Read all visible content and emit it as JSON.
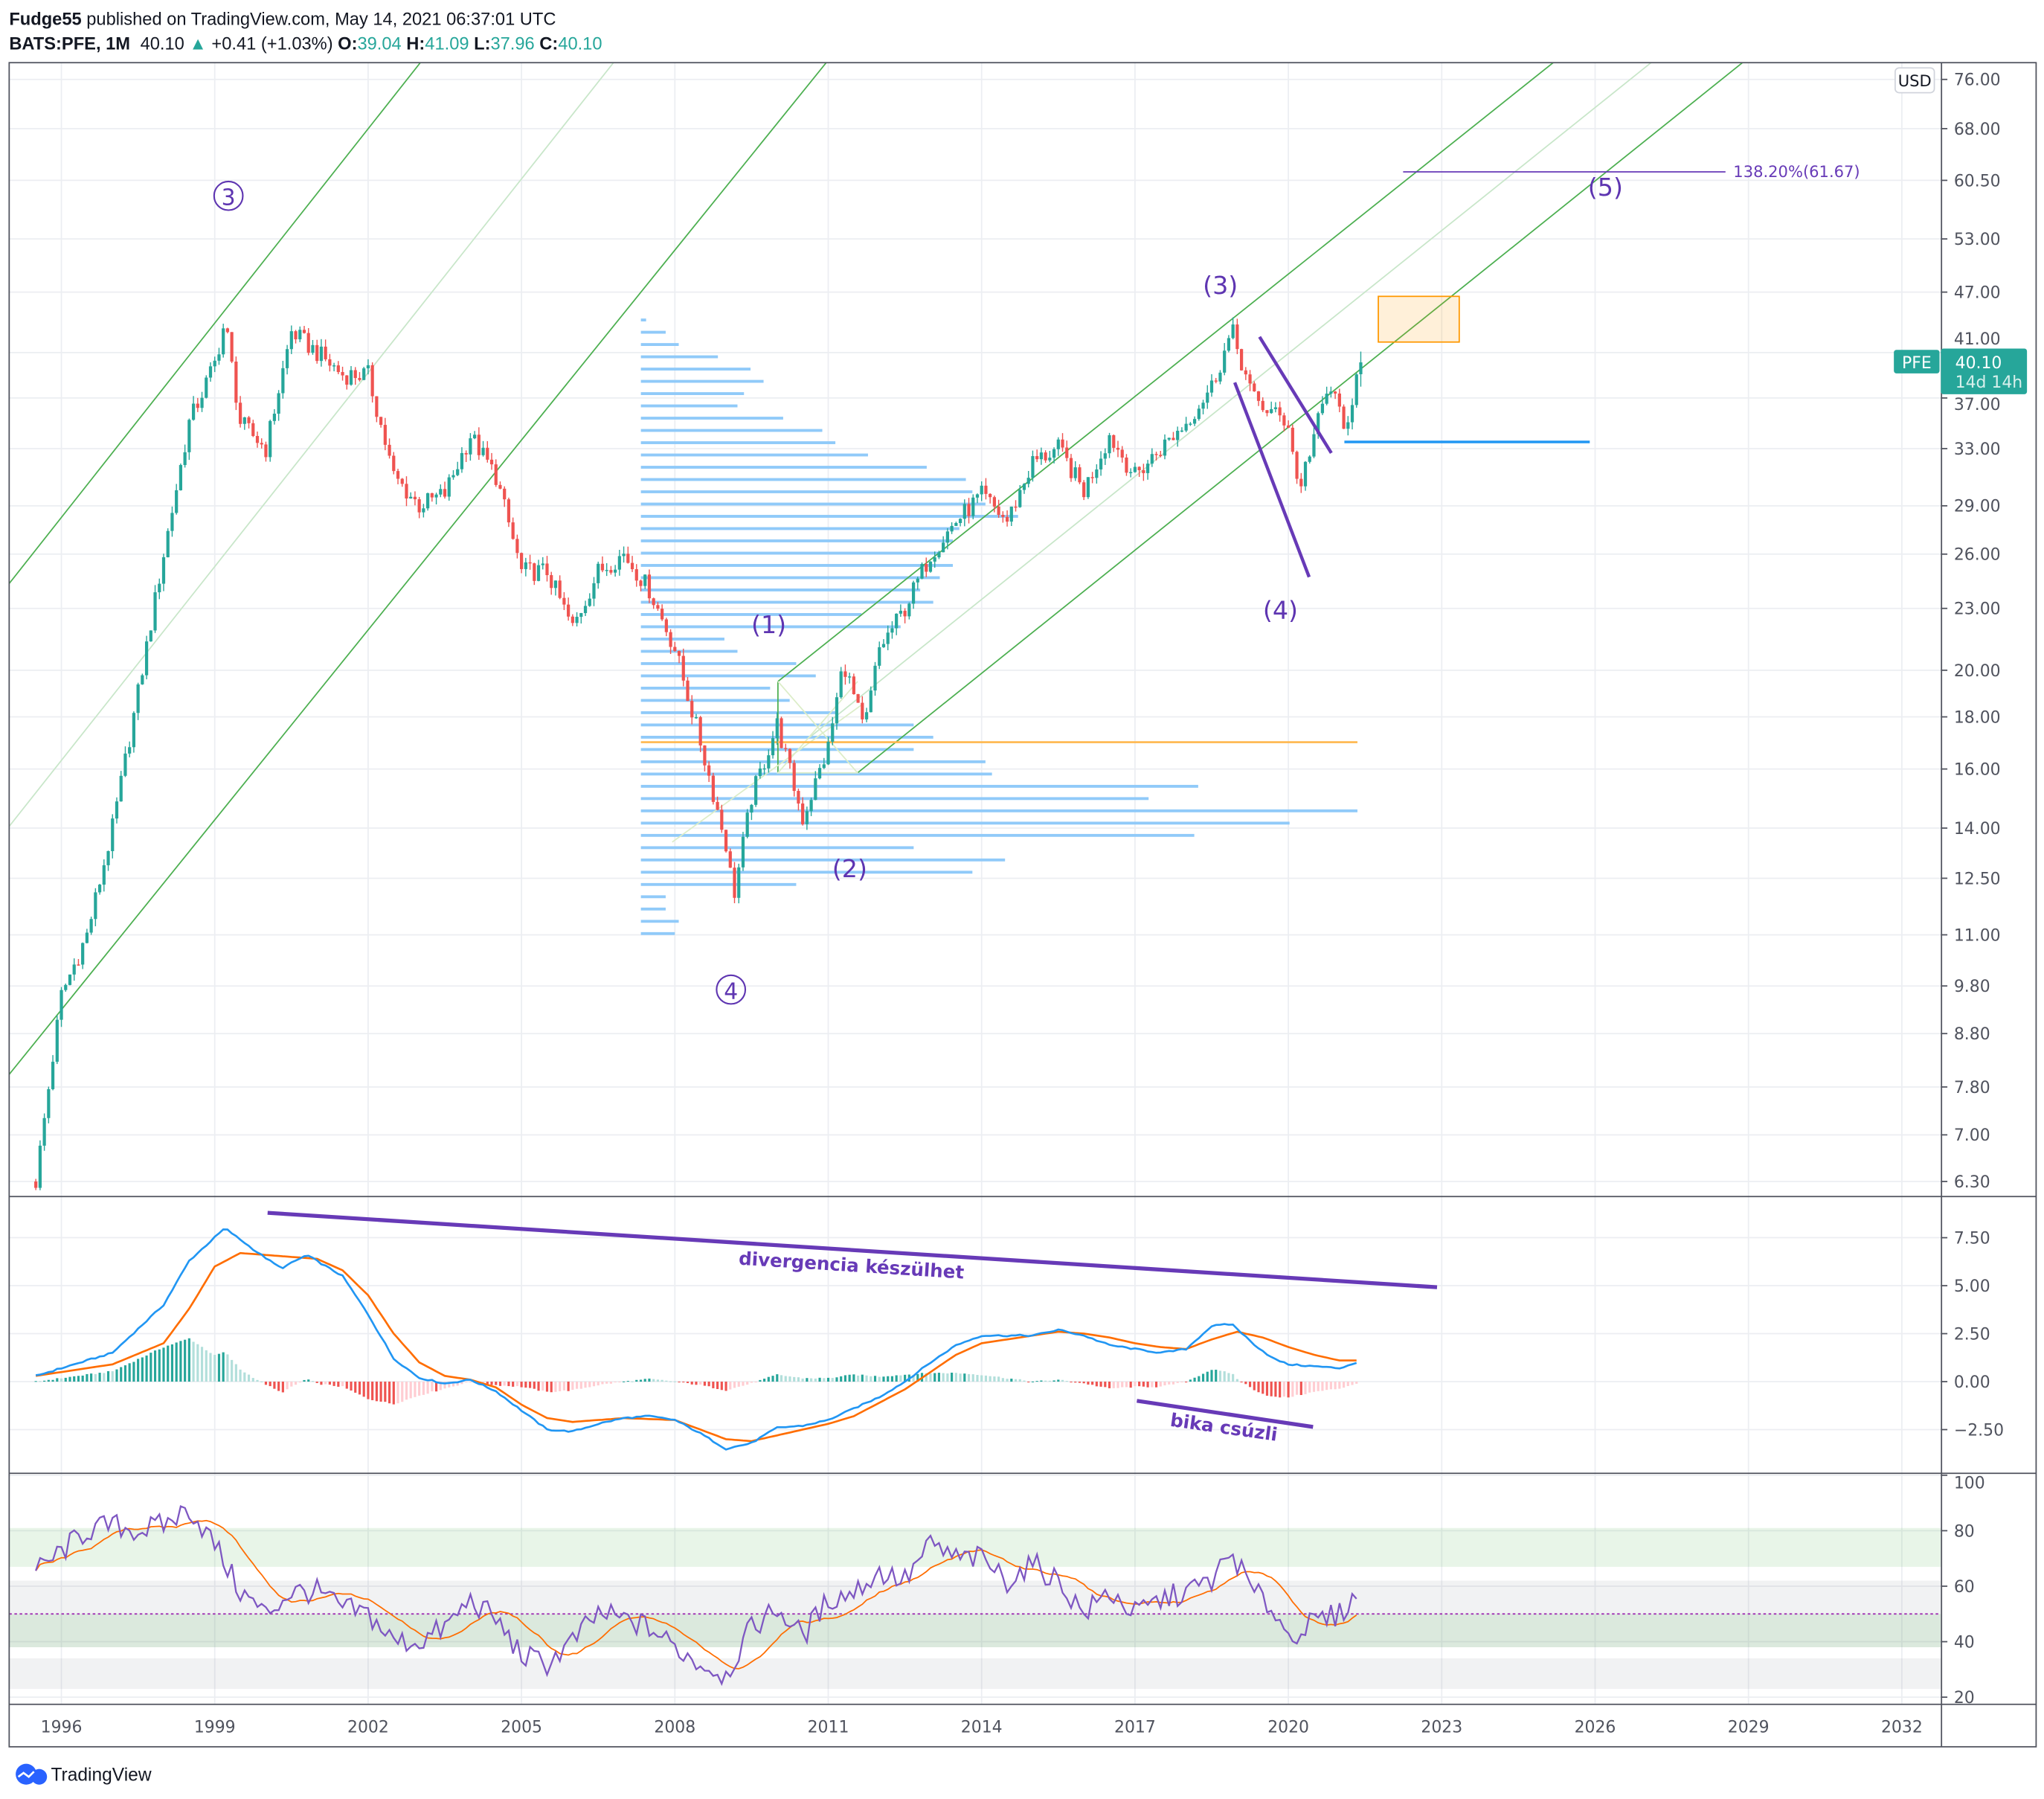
{
  "header": {
    "publisher": "Fudge55",
    "published_text": "published on TradingView.com, May 14, 2021 06:37:01 UTC",
    "symbol": "BATS:PFE, 1M",
    "last": "40.10",
    "change_icon": "triangle-up-icon",
    "change": "+0.41 (+1.03%)",
    "o_label": "O:",
    "o": "39.04",
    "h_label": "H:",
    "h": "41.09",
    "l_label": "L:",
    "l": "37.96",
    "c_label": "C:",
    "c": "40.10"
  },
  "price_axis": {
    "currency": "USD",
    "ticks": [
      "76.00",
      "68.00",
      "60.50",
      "53.00",
      "47.00",
      "41.00",
      "37.00",
      "33.00",
      "29.00",
      "26.00",
      "23.00",
      "20.00",
      "18.00",
      "16.00",
      "14.00",
      "12.50",
      "11.00",
      "9.80",
      "8.80",
      "7.80",
      "7.00",
      "6.30"
    ],
    "badge": {
      "symbol": "PFE",
      "price": "40.10",
      "countdown": "14d 14h"
    }
  },
  "time_axis": {
    "ticks": [
      "1996",
      "1999",
      "2002",
      "2005",
      "2008",
      "2011",
      "2014",
      "2017",
      "2020",
      "2023",
      "2026",
      "2029",
      "2032"
    ]
  },
  "annotations": {
    "wave_3_major": "3",
    "wave_4_major": "4",
    "wave_1": "(1)",
    "wave_2": "(2)",
    "wave_3": "(3)",
    "wave_4": "(4)",
    "wave_5": "(5)",
    "fib_label": "138.20%(61.67)",
    "macd_note": "divergencia készülhet",
    "macd_note2": "bika csúzli"
  },
  "macd_axis": {
    "ticks": [
      "7.50",
      "5.00",
      "2.50",
      "0.00",
      "−2.50"
    ]
  },
  "rsi_axis": {
    "ticks": [
      "100",
      "80",
      "60",
      "40",
      "20"
    ]
  },
  "footer": {
    "brand": "TradingView"
  },
  "colors": {
    "up": "#26a69a",
    "down": "#ef5350",
    "up_light": "#b2dfdb",
    "down_light": "#ffcdd2",
    "macd": "#2196f3",
    "signal": "#ff6d00",
    "rsi": "#7e57c2",
    "drawing": "#673ab7",
    "channel": "#4caf50"
  },
  "chart_data": [
    {
      "type": "candlestick",
      "title": "BATS:PFE, 1M",
      "scale": "log",
      "ylim": [
        6.3,
        76
      ],
      "xlim": [
        1995.5,
        2033
      ],
      "close_anchors": [
        [
          1995.5,
          6.3
        ],
        [
          1996,
          9.6
        ],
        [
          1996.5,
          11
        ],
        [
          1997,
          14
        ],
        [
          1997.5,
          19
        ],
        [
          1998,
          26
        ],
        [
          1998.5,
          35
        ],
        [
          1999,
          40
        ],
        [
          1999.2,
          44
        ],
        [
          1999.5,
          35
        ],
        [
          2000,
          33
        ],
        [
          2000.5,
          43
        ],
        [
          2001,
          41
        ],
        [
          2001.5,
          39
        ],
        [
          2002,
          39
        ],
        [
          2002.5,
          31
        ],
        [
          2003,
          29
        ],
        [
          2003.5,
          29.8
        ],
        [
          2004,
          34
        ],
        [
          2004.5,
          31
        ],
        [
          2005,
          25
        ],
        [
          2005.5,
          25
        ],
        [
          2006,
          22
        ],
        [
          2006.5,
          25
        ],
        [
          2007,
          26
        ],
        [
          2007.5,
          24
        ],
        [
          2008,
          21
        ],
        [
          2008.5,
          17
        ],
        [
          2009,
          13.5
        ],
        [
          2009.15,
          12
        ],
        [
          2009.5,
          15
        ],
        [
          2010,
          17.7
        ],
        [
          2010.5,
          14.3
        ],
        [
          2011,
          16.8
        ],
        [
          2011.3,
          20.4
        ],
        [
          2011.7,
          17.4
        ],
        [
          2012,
          21
        ],
        [
          2012.5,
          23
        ],
        [
          2013,
          26
        ],
        [
          2013.5,
          28
        ],
        [
          2014,
          29.7
        ],
        [
          2014.5,
          28
        ],
        [
          2015,
          32
        ],
        [
          2015.5,
          33
        ],
        [
          2016,
          30
        ],
        [
          2016.5,
          34
        ],
        [
          2017,
          31
        ],
        [
          2017.5,
          33
        ],
        [
          2018,
          35
        ],
        [
          2018.5,
          38
        ],
        [
          2018.9,
          43
        ],
        [
          2019.3,
          37
        ],
        [
          2019.6,
          36
        ],
        [
          2020,
          35
        ],
        [
          2020.2,
          30
        ],
        [
          2020.5,
          34
        ],
        [
          2020.8,
          38
        ],
        [
          2021,
          36
        ],
        [
          2021.2,
          34
        ],
        [
          2021.34,
          39.04
        ]
      ],
      "last_candle": {
        "open": 39.04,
        "high": 41.09,
        "low": 37.96,
        "close": 40.1
      },
      "volume_profile": [
        4,
        19,
        29,
        59,
        84,
        94,
        79,
        74,
        109,
        139,
        149,
        174,
        219,
        249,
        254,
        264,
        289,
        244,
        239,
        229,
        239,
        229,
        214,
        224,
        169,
        199,
        64,
        74,
        119,
        134,
        99,
        114,
        149,
        209,
        224,
        209,
        264,
        269,
        427,
        389,
        549,
        497,
        424,
        209,
        279,
        254,
        119,
        19,
        19,
        29,
        26
      ],
      "poc_price": 17.0,
      "horizontal_level": 33.5,
      "fib_level": 61.67
    },
    {
      "type": "line",
      "title": "MACD",
      "ylim": [
        -3.8,
        8.8
      ],
      "series": [
        {
          "name": "MACD",
          "anchors": [
            [
              1995.5,
              0.3
            ],
            [
              1997,
              1.5
            ],
            [
              1998,
              4
            ],
            [
              1998.5,
              6.3
            ],
            [
              1999.2,
              8.0
            ],
            [
              1999.8,
              6.8
            ],
            [
              2000.3,
              5.9
            ],
            [
              2000.8,
              6.6
            ],
            [
              2001.5,
              5.5
            ],
            [
              2002,
              3.5
            ],
            [
              2002.5,
              1.2
            ],
            [
              2003,
              0.2
            ],
            [
              2003.5,
              -0.1
            ],
            [
              2004,
              0.1
            ],
            [
              2004.5,
              -0.5
            ],
            [
              2005,
              -1.5
            ],
            [
              2005.5,
              -2.5
            ],
            [
              2006,
              -2.6
            ],
            [
              2006.5,
              -2.2
            ],
            [
              2007,
              -1.9
            ],
            [
              2007.5,
              -1.8
            ],
            [
              2008,
              -2.0
            ],
            [
              2008.5,
              -2.7
            ],
            [
              2009,
              -3.5
            ],
            [
              2009.5,
              -3.2
            ],
            [
              2010,
              -2.4
            ],
            [
              2010.5,
              -2.3
            ],
            [
              2011,
              -2.0
            ],
            [
              2011.5,
              -1.4
            ],
            [
              2012,
              -0.8
            ],
            [
              2012.5,
              0.0
            ],
            [
              2013,
              1.0
            ],
            [
              2013.5,
              1.9
            ],
            [
              2014,
              2.4
            ],
            [
              2014.5,
              2.4
            ],
            [
              2015,
              2.4
            ],
            [
              2015.5,
              2.7
            ],
            [
              2016,
              2.4
            ],
            [
              2016.5,
              1.9
            ],
            [
              2017,
              1.7
            ],
            [
              2017.5,
              1.5
            ],
            [
              2018,
              1.7
            ],
            [
              2018.5,
              2.9
            ],
            [
              2018.9,
              3.0
            ],
            [
              2019.3,
              2.0
            ],
            [
              2019.7,
              1.2
            ],
            [
              2020,
              0.9
            ],
            [
              2020.5,
              0.8
            ],
            [
              2021,
              0.7
            ],
            [
              2021.34,
              1.0
            ]
          ]
        },
        {
          "name": "Signal",
          "anchors": [
            [
              1995.5,
              0.3
            ],
            [
              1997,
              0.9
            ],
            [
              1998,
              2.0
            ],
            [
              1998.5,
              3.8
            ],
            [
              1999,
              6.0
            ],
            [
              1999.5,
              6.7
            ],
            [
              2000.5,
              6.5
            ],
            [
              2001,
              6.4
            ],
            [
              2001.5,
              5.8
            ],
            [
              2002,
              4.5
            ],
            [
              2002.5,
              2.5
            ],
            [
              2003,
              1.0
            ],
            [
              2003.5,
              0.3
            ],
            [
              2004,
              0.1
            ],
            [
              2004.5,
              -0.3
            ],
            [
              2005,
              -1.2
            ],
            [
              2005.5,
              -1.9
            ],
            [
              2006,
              -2.1
            ],
            [
              2007,
              -1.9
            ],
            [
              2008,
              -2.0
            ],
            [
              2008.5,
              -2.5
            ],
            [
              2009,
              -3.0
            ],
            [
              2009.5,
              -3.1
            ],
            [
              2010,
              -2.8
            ],
            [
              2010.5,
              -2.5
            ],
            [
              2011,
              -2.2
            ],
            [
              2011.5,
              -1.8
            ],
            [
              2012,
              -1.1
            ],
            [
              2012.5,
              -0.4
            ],
            [
              2013,
              0.5
            ],
            [
              2013.5,
              1.4
            ],
            [
              2014,
              2.0
            ],
            [
              2014.5,
              2.2
            ],
            [
              2015,
              2.4
            ],
            [
              2015.5,
              2.6
            ],
            [
              2016,
              2.5
            ],
            [
              2016.5,
              2.3
            ],
            [
              2017,
              2.0
            ],
            [
              2017.5,
              1.8
            ],
            [
              2018,
              1.7
            ],
            [
              2018.5,
              2.2
            ],
            [
              2019,
              2.6
            ],
            [
              2019.5,
              2.3
            ],
            [
              2020,
              1.8
            ],
            [
              2020.5,
              1.4
            ],
            [
              2021,
              1.1
            ],
            [
              2021.34,
              1.1
            ]
          ]
        }
      ]
    },
    {
      "type": "line",
      "title": "RSI",
      "ylim": [
        20,
        100
      ],
      "bands": [
        [
          67,
          81
        ],
        [
          38,
          62
        ],
        [
          38,
          50
        ],
        [
          23,
          34
        ]
      ],
      "midline": 50,
      "series": [
        {
          "name": "RSI",
          "anchors": [
            [
              1995.5,
              65
            ],
            [
              1996.5,
              80
            ],
            [
              1997,
              82
            ],
            [
              1997.5,
              80
            ],
            [
              1998,
              82
            ],
            [
              1998.5,
              88
            ],
            [
              1999,
              75
            ],
            [
              1999.5,
              58
            ],
            [
              2000,
              50
            ],
            [
              2000.5,
              58
            ],
            [
              2001,
              58
            ],
            [
              2001.5,
              52
            ],
            [
              2002,
              50
            ],
            [
              2002.5,
              40
            ],
            [
              2003,
              40
            ],
            [
              2003.5,
              45
            ],
            [
              2004,
              55
            ],
            [
              2004.5,
              48
            ],
            [
              2005,
              35
            ],
            [
              2005.5,
              32
            ],
            [
              2006,
              40
            ],
            [
              2006.5,
              50
            ],
            [
              2007,
              48
            ],
            [
              2007.5,
              45
            ],
            [
              2008,
              38
            ],
            [
              2008.5,
              32
            ],
            [
              2009,
              28
            ],
            [
              2009.5,
              45
            ],
            [
              2010,
              52
            ],
            [
              2010.5,
              42
            ],
            [
              2011,
              55
            ],
            [
              2011.5,
              58
            ],
            [
              2012,
              65
            ],
            [
              2012.5,
              62
            ],
            [
              2013,
              75
            ],
            [
              2013.5,
              70
            ],
            [
              2014,
              70
            ],
            [
              2014.5,
              62
            ],
            [
              2015,
              68
            ],
            [
              2015.5,
              62
            ],
            [
              2016,
              50
            ],
            [
              2016.5,
              58
            ],
            [
              2017,
              50
            ],
            [
              2017.5,
              55
            ],
            [
              2018,
              58
            ],
            [
              2018.5,
              62
            ],
            [
              2018.9,
              72
            ],
            [
              2019.3,
              58
            ],
            [
              2019.7,
              52
            ],
            [
              2020,
              42
            ],
            [
              2020.3,
              45
            ],
            [
              2020.7,
              48
            ],
            [
              2021,
              50
            ],
            [
              2021.34,
              57
            ]
          ]
        },
        {
          "name": "RSI MA",
          "period": 14
        }
      ]
    }
  ]
}
